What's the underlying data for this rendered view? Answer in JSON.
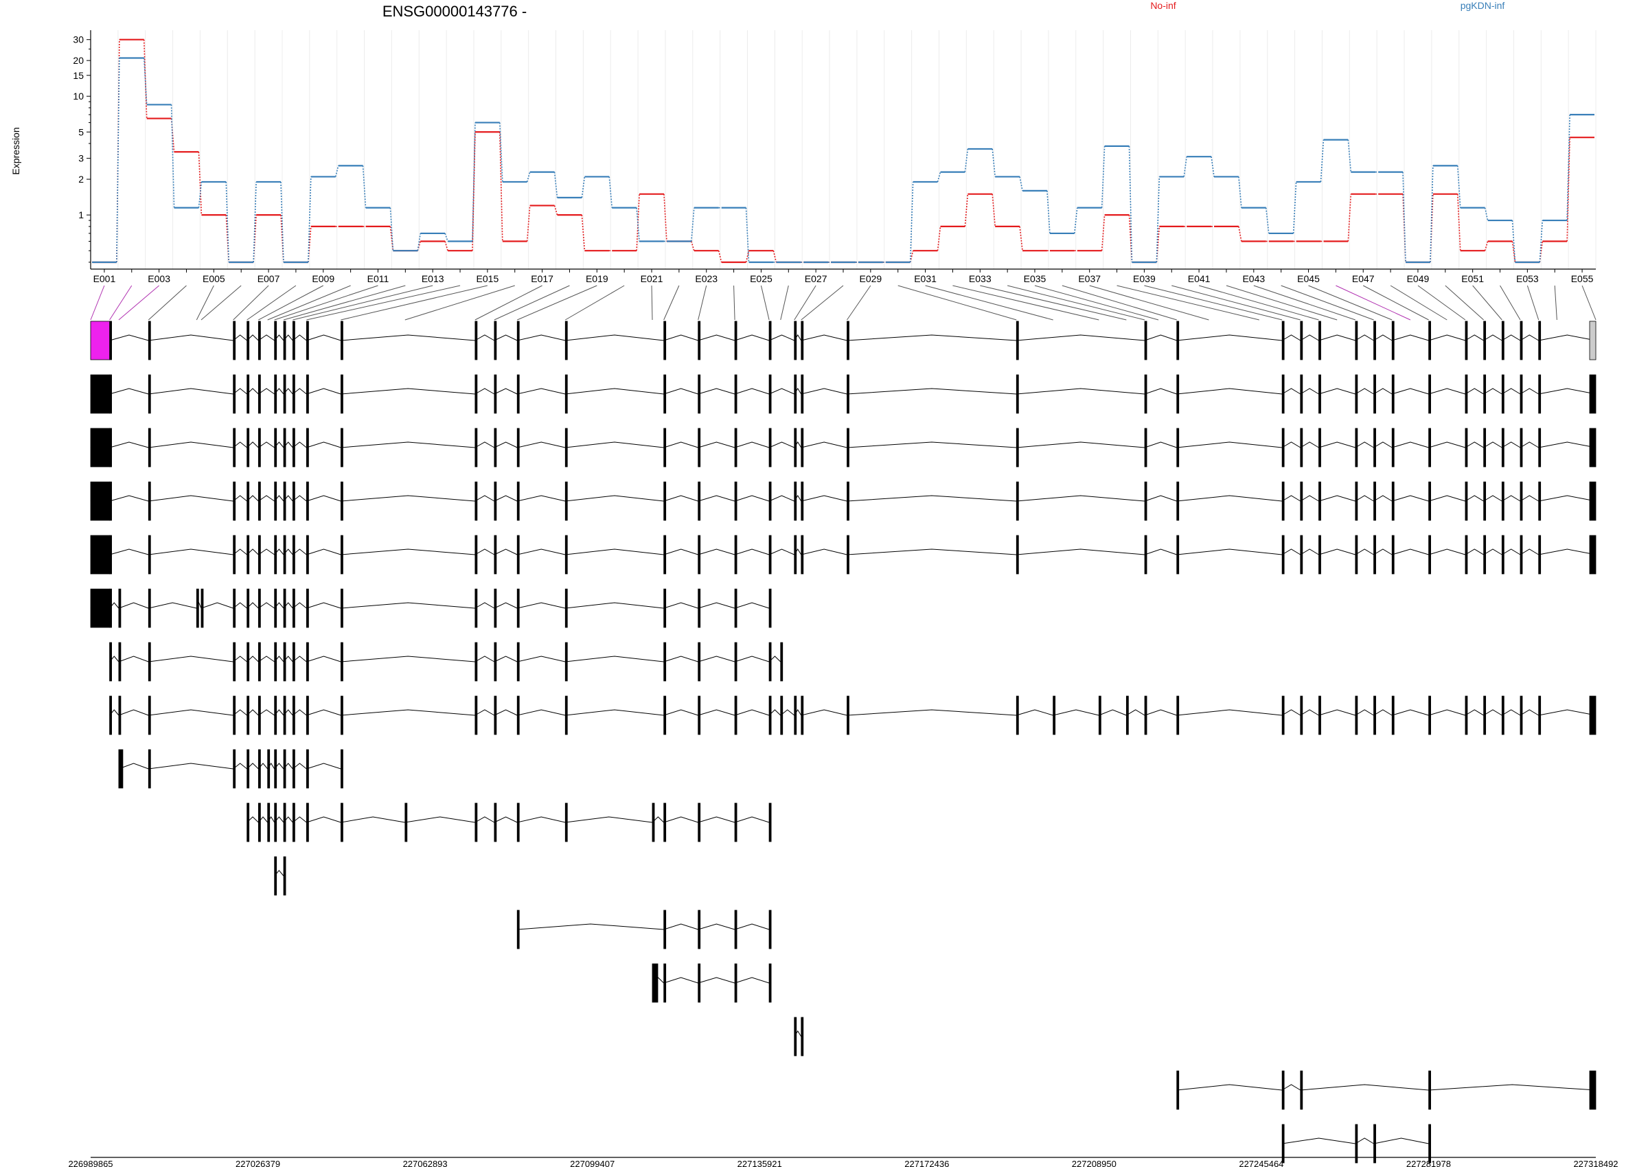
{
  "title": "ENSG00000143776 -",
  "legend": [
    {
      "name": "No-inf",
      "color": "#e41a1c"
    },
    {
      "name": "pgKDN-inf",
      "color": "#377eb8"
    }
  ],
  "chart_data": {
    "type": "line",
    "ylabel": "Expression",
    "yscale": "log",
    "yticks": [
      1,
      2,
      3,
      5,
      10,
      15,
      20,
      30
    ],
    "ylim": [
      0.35,
      36
    ],
    "grid": "vertical",
    "x": [
      "E001",
      "E002",
      "E003",
      "E004",
      "E005",
      "E006",
      "E007",
      "E008",
      "E009",
      "E010",
      "E011",
      "E012",
      "E013",
      "E014",
      "E015",
      "E016",
      "E017",
      "E018",
      "E019",
      "E020",
      "E021",
      "E022",
      "E023",
      "E024",
      "E025",
      "E026",
      "E027",
      "E028",
      "E029",
      "E030",
      "E031",
      "E032",
      "E033",
      "E034",
      "E035",
      "E036",
      "E037",
      "E038",
      "E039",
      "E040",
      "E041",
      "E042",
      "E043",
      "E044",
      "E045",
      "E046",
      "E047",
      "E048",
      "E049",
      "E050",
      "E051",
      "E052",
      "E053",
      "E054",
      "E055"
    ],
    "series": [
      {
        "name": "No-inf",
        "values": [
          0.4,
          30,
          6.5,
          3.4,
          1.0,
          0.4,
          1.0,
          0.4,
          0.8,
          0.8,
          0.8,
          0.5,
          0.6,
          0.5,
          5.0,
          0.6,
          1.2,
          1.0,
          0.5,
          0.5,
          1.5,
          0.6,
          0.5,
          0.4,
          0.5,
          0.4,
          0.4,
          0.4,
          0.4,
          0.4,
          0.5,
          0.8,
          1.5,
          0.8,
          0.5,
          0.5,
          0.5,
          1.0,
          0.4,
          0.8,
          0.8,
          0.8,
          0.6,
          0.6,
          0.6,
          0.6,
          1.5,
          1.5,
          0.4,
          1.5,
          0.5,
          0.6,
          0.4,
          0.6,
          4.5
        ]
      },
      {
        "name": "pgKDN-inf",
        "values": [
          0.4,
          21,
          8.5,
          1.15,
          1.9,
          0.4,
          1.9,
          0.4,
          2.1,
          2.6,
          1.15,
          0.5,
          0.7,
          0.6,
          6.0,
          1.9,
          2.3,
          1.4,
          2.1,
          1.15,
          0.6,
          0.6,
          1.15,
          1.15,
          0.4,
          0.4,
          0.4,
          0.4,
          0.4,
          0.4,
          1.9,
          2.3,
          3.6,
          2.1,
          1.6,
          0.7,
          1.15,
          3.8,
          0.4,
          2.1,
          3.1,
          2.1,
          1.15,
          0.7,
          1.9,
          4.3,
          2.3,
          2.3,
          0.4,
          2.6,
          1.15,
          0.9,
          0.4,
          0.9,
          7.0
        ]
      }
    ],
    "tick_labels": [
      "E001",
      "E003",
      "E005",
      "E007",
      "E009",
      "E011",
      "E013",
      "E015",
      "E017",
      "E019",
      "E021",
      "E023",
      "E025",
      "E027",
      "E029",
      "E031",
      "E033",
      "E035",
      "E037",
      "E039",
      "E041",
      "E043",
      "E045",
      "E047",
      "E049",
      "E051",
      "E053",
      "E055"
    ],
    "highlight_exons": [
      "E001",
      "E002",
      "E003",
      "E046"
    ],
    "genome_axis": {
      "min": 226989865,
      "max": 227318492,
      "labels": [
        "226989865",
        "227026379",
        "227062893",
        "227099407",
        "227135921",
        "227172436",
        "227208950",
        "227245464",
        "227281978",
        "227318492"
      ]
    },
    "exon_positions": [
      226989865,
      226994000,
      226996000,
      227002500,
      227013000,
      227014000,
      227021000,
      227024000,
      227026500,
      227028500,
      227030000,
      227032000,
      227034000,
      227037000,
      227044500,
      227058500,
      227073800,
      227078000,
      227083000,
      227093500,
      227112500,
      227115000,
      227122500,
      227130500,
      227138000,
      227140500,
      227143500,
      227145000,
      227155000,
      227192000,
      227200000,
      227210000,
      227216000,
      227220000,
      227223000,
      227227000,
      227234000,
      227245000,
      227250000,
      227254000,
      227258000,
      227262000,
      227266000,
      227270000,
      227274000,
      227278000,
      227282000,
      227286000,
      227290000,
      227294000,
      227298000,
      227302000,
      227306000,
      227310000,
      227318492
    ],
    "transcripts": [
      {
        "exons": [
          1,
          2,
          4,
          7,
          8,
          9,
          11,
          12,
          13,
          14,
          15,
          17,
          18,
          19,
          20,
          22,
          23,
          24,
          25,
          27,
          28,
          29,
          30,
          34,
          36,
          39,
          40,
          41,
          43,
          44,
          45,
          47,
          49,
          50,
          51,
          52,
          53,
          55
        ]
      },
      {
        "exons": [
          1,
          2,
          4,
          7,
          8,
          9,
          11,
          12,
          13,
          14,
          15,
          17,
          18,
          19,
          20,
          22,
          23,
          24,
          25,
          27,
          28,
          29,
          30,
          34,
          36,
          39,
          40,
          41,
          43,
          44,
          45,
          47,
          49,
          50,
          51,
          52,
          53,
          55
        ]
      },
      {
        "exons": [
          1,
          2,
          4,
          7,
          8,
          9,
          11,
          12,
          13,
          14,
          15,
          17,
          18,
          19,
          20,
          22,
          23,
          24,
          25,
          27,
          28,
          29,
          30,
          34,
          36,
          39,
          40,
          41,
          43,
          44,
          45,
          47,
          49,
          50,
          51,
          52,
          53,
          55
        ]
      },
      {
        "exons": [
          1,
          2,
          4,
          7,
          8,
          9,
          11,
          12,
          13,
          14,
          15,
          17,
          18,
          19,
          20,
          22,
          23,
          24,
          25,
          27,
          28,
          29,
          30,
          34,
          36,
          39,
          40,
          41,
          43,
          44,
          45,
          47,
          49,
          50,
          51,
          52,
          53,
          55
        ]
      },
      {
        "exons": [
          1,
          2,
          4,
          7,
          8,
          9,
          11,
          12,
          13,
          14,
          15,
          17,
          18,
          19,
          20,
          22,
          23,
          24,
          25,
          27,
          28,
          29,
          30,
          34,
          36,
          39,
          40,
          41,
          43,
          44,
          45,
          47,
          49,
          50,
          51,
          52,
          53,
          55
        ]
      },
      {
        "exons": [
          1,
          2,
          3,
          4,
          5,
          6,
          7,
          8,
          9,
          11,
          12,
          13,
          14,
          15,
          17,
          18,
          19,
          20,
          22,
          23,
          24,
          25
        ]
      },
      {
        "exons": [
          2,
          3,
          4,
          7,
          8,
          9,
          11,
          12,
          13,
          14,
          15,
          17,
          18,
          19,
          20,
          22,
          23,
          24,
          25,
          26
        ]
      },
      {
        "exons": [
          2,
          3,
          4,
          7,
          8,
          9,
          11,
          12,
          13,
          14,
          15,
          17,
          18,
          19,
          20,
          22,
          23,
          24,
          25,
          26,
          27,
          28,
          29,
          30,
          31,
          32,
          33,
          34,
          36,
          39,
          40,
          41,
          43,
          44,
          45,
          47,
          49,
          50,
          51,
          52,
          53,
          55
        ]
      },
      {
        "exons": [
          3,
          4,
          7,
          8,
          9,
          10,
          11,
          12,
          13,
          14,
          15
        ]
      },
      {
        "exons": [
          8,
          9,
          10,
          11,
          12,
          13,
          14,
          15,
          16,
          17,
          18,
          19,
          20,
          21,
          22,
          23,
          24,
          25
        ]
      },
      {
        "exons": [
          11,
          12
        ]
      },
      {
        "exons": [
          19,
          22,
          23,
          24,
          25
        ]
      },
      {
        "exons": [
          21,
          22,
          23,
          24,
          25
        ]
      },
      {
        "exons": [
          27,
          28
        ]
      },
      {
        "exons": [
          36,
          39,
          40,
          47,
          55
        ]
      },
      {
        "exons": [
          39,
          43,
          44,
          47
        ]
      }
    ]
  }
}
